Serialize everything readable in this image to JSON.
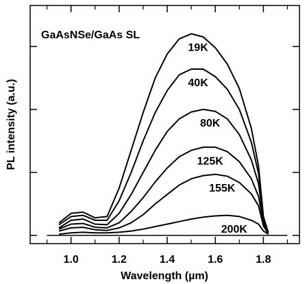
{
  "chart_data": {
    "type": "line",
    "annotation": "GaAsNSe/GaAs SL",
    "x_label": "Wavelength (µm)",
    "y_label": "PL intensity (a.u.)",
    "x": [
      0.95,
      1.0,
      1.05,
      1.1,
      1.15,
      1.2,
      1.25,
      1.3,
      1.35,
      1.4,
      1.45,
      1.5,
      1.55,
      1.6,
      1.65,
      1.7,
      1.75,
      1.78,
      1.8,
      1.82
    ],
    "series": [
      {
        "name": "19K",
        "color": "#000000",
        "values": [
          0.2,
          0.35,
          0.37,
          0.28,
          0.3,
          0.75,
          1.35,
          1.95,
          2.5,
          2.88,
          3.12,
          3.2,
          3.15,
          2.98,
          2.72,
          2.33,
          1.7,
          1.1,
          0.3,
          0.05
        ]
      },
      {
        "name": "40K",
        "color": "#000000",
        "values": [
          0.17,
          0.3,
          0.32,
          0.24,
          0.24,
          0.55,
          1.0,
          1.5,
          1.95,
          2.3,
          2.55,
          2.64,
          2.64,
          2.52,
          2.32,
          2.0,
          1.48,
          0.98,
          0.28,
          0.05
        ]
      },
      {
        "name": "80K",
        "color": "#000000",
        "values": [
          0.12,
          0.24,
          0.26,
          0.18,
          0.17,
          0.35,
          0.65,
          1.0,
          1.35,
          1.65,
          1.85,
          1.96,
          2.0,
          1.97,
          1.85,
          1.6,
          1.2,
          0.82,
          0.25,
          0.04
        ]
      },
      {
        "name": "125K",
        "color": "#000000",
        "values": [
          0.1,
          0.18,
          0.19,
          0.13,
          0.12,
          0.2,
          0.38,
          0.6,
          0.85,
          1.07,
          1.25,
          1.35,
          1.4,
          1.4,
          1.33,
          1.17,
          0.9,
          0.62,
          0.2,
          0.04
        ]
      },
      {
        "name": "155K",
        "color": "#000000",
        "values": [
          0.07,
          0.12,
          0.13,
          0.09,
          0.08,
          0.12,
          0.2,
          0.33,
          0.5,
          0.65,
          0.8,
          0.9,
          0.95,
          0.97,
          0.94,
          0.84,
          0.66,
          0.47,
          0.15,
          0.03
        ]
      },
      {
        "name": "200K",
        "color": "#000000",
        "values": [
          0.02,
          0.04,
          0.05,
          0.04,
          0.04,
          0.05,
          0.07,
          0.1,
          0.14,
          0.18,
          0.22,
          0.26,
          0.29,
          0.31,
          0.32,
          0.3,
          0.24,
          0.18,
          0.07,
          0.02
        ]
      }
    ],
    "xlim": [
      0.83,
      1.95
    ],
    "ylim": [
      -0.13,
      3.65
    ],
    "xticks": [
      {
        "value": 1,
        "label": "1.0"
      },
      1.2,
      1.4,
      1.6,
      1.8
    ],
    "x_minor_ticks": [
      0.9,
      1.1,
      1.3,
      1.5,
      1.7,
      1.9
    ],
    "yticks": [
      0,
      1,
      2,
      3
    ],
    "grid": false
  }
}
